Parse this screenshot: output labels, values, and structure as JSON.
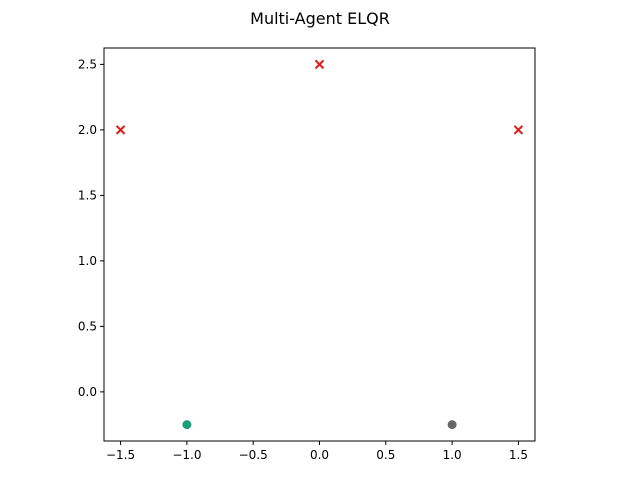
{
  "chart_data": {
    "type": "scatter",
    "title": "Multi-Agent ELQR",
    "xlabel": "",
    "ylabel": "",
    "xlim": [
      -1.625,
      1.625
    ],
    "ylim": [
      -0.375,
      2.625
    ],
    "x_ticks": [
      -1.5,
      -1.0,
      -0.5,
      0.0,
      0.5,
      1.0,
      1.5
    ],
    "x_tick_labels": [
      "−1.5",
      "−1.0",
      "−0.5",
      "0.0",
      "0.5",
      "1.0",
      "1.5"
    ],
    "y_ticks": [
      0.0,
      0.5,
      1.0,
      1.5,
      2.0,
      2.5
    ],
    "y_tick_labels": [
      "0.0",
      "0.5",
      "1.0",
      "1.5",
      "2.0",
      "2.5"
    ],
    "grid": false,
    "series": [
      {
        "marker": "x",
        "color": "#e41a1c",
        "points": [
          {
            "x": -1.5,
            "y": 2.0
          },
          {
            "x": 0.0,
            "y": 2.5
          },
          {
            "x": 1.5,
            "y": 2.0
          }
        ]
      },
      {
        "marker": "circle",
        "color": "#1b9e77",
        "points": [
          {
            "x": -1.0,
            "y": -0.25
          }
        ]
      },
      {
        "marker": "circle",
        "color": "#666666",
        "points": [
          {
            "x": 1.0,
            "y": -0.25
          }
        ]
      }
    ]
  }
}
